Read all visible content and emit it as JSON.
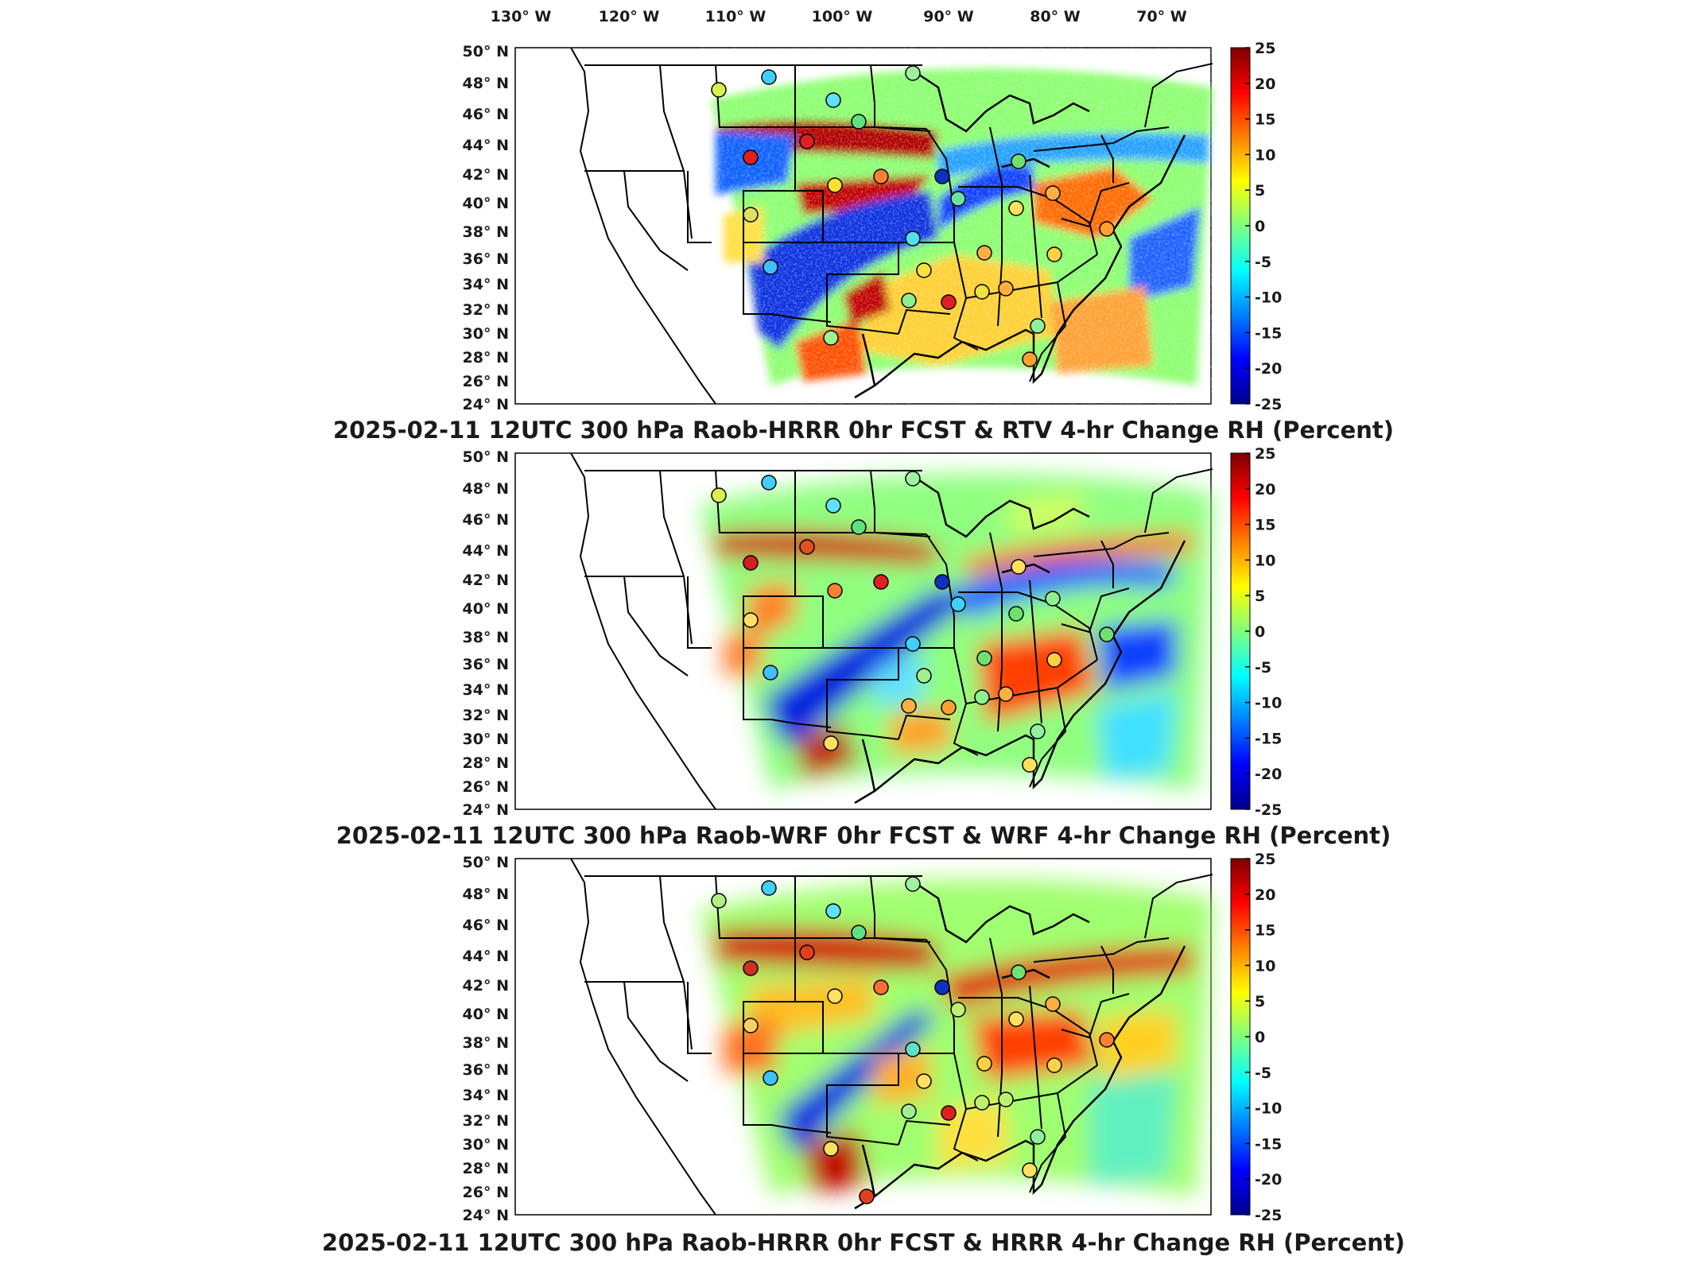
{
  "figure": {
    "lon_tick_labels": [
      "130° W",
      "120° W",
      "110° W",
      "100° W",
      "90° W",
      "80° W",
      "70° W"
    ],
    "lat_tick_labels": [
      "50° N",
      "48° N",
      "46° N",
      "44° N",
      "42° N",
      "40° N",
      "38° N",
      "36° N",
      "34° N",
      "32° N",
      "30° N",
      "28° N",
      "26° N",
      "24° N"
    ],
    "colorbar": {
      "ticks": [
        "25",
        "20",
        "15",
        "10",
        "5",
        "0",
        "-5",
        "-10",
        "-15",
        "-20",
        "-25"
      ],
      "range": [
        -25,
        25
      ],
      "colormap": [
        "#7f0000",
        "#ff0000",
        "#ff8000",
        "#ffff00",
        "#80ff80",
        "#00ffff",
        "#0080ff",
        "#0000ff",
        "#00008f"
      ]
    },
    "panels": [
      {
        "title": "2025-02-11 12UTC 300 hPa Raob-HRRR 0hr FCST & RTV 4-hr Change RH (Percent)",
        "style": "noisy"
      },
      {
        "title": "2025-02-11 12UTC 300 hPa Raob-WRF 0hr FCST & WRF 4-hr Change RH (Percent)",
        "style": "smooth"
      },
      {
        "title": "2025-02-11 12UTC 300 hPa Raob-HRRR 0hr FCST & HRRR 4-hr Change RH (Percent)",
        "style": "smooth"
      }
    ]
  }
}
